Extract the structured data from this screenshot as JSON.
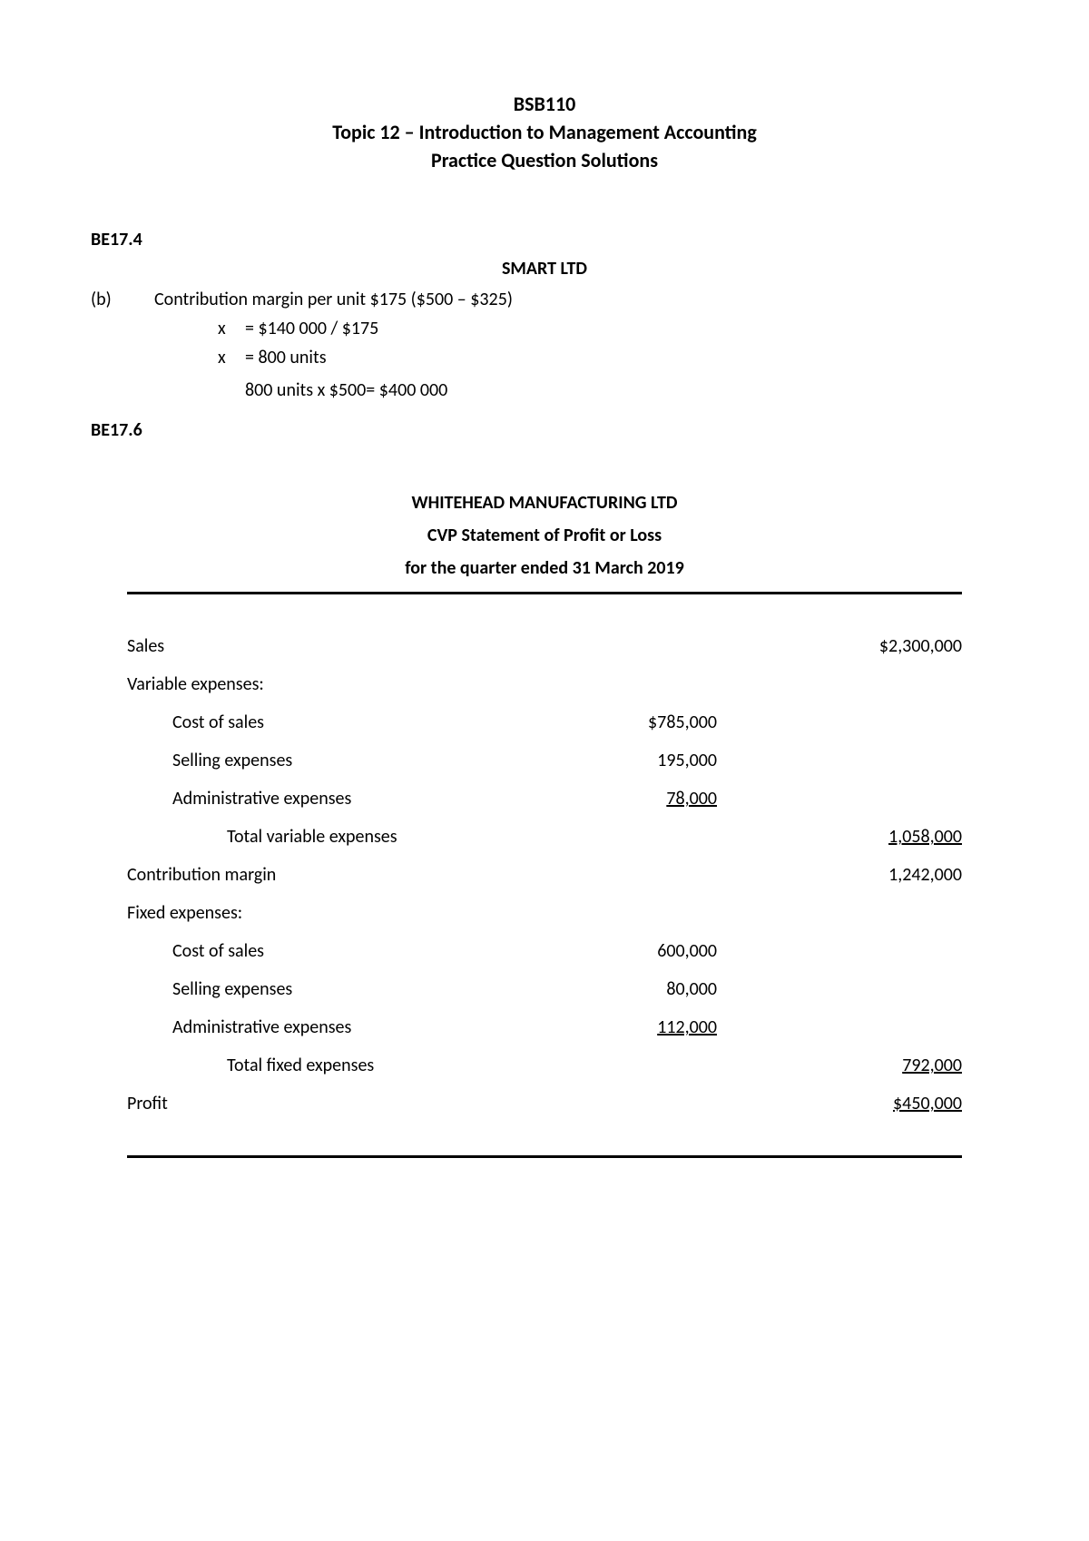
{
  "header": {
    "course": "BSB110",
    "topic": "Topic 12 – Introduction to Management Accounting",
    "subtitle": "Practice Question Solutions"
  },
  "q1": {
    "label": "BE17.4",
    "company": "SMART LTD",
    "part_marker": "(b)",
    "part_text": "Contribution margin per unit $175 ($500 – $325)",
    "calc1_var": "x",
    "calc1_val": "= $140 000 / $175",
    "calc2_var": "x",
    "calc2_val": "= 800 units",
    "calc3": "800 units x $500= $400 000"
  },
  "q2": {
    "label": "BE17.6"
  },
  "statement": {
    "company": "WHITEHEAD MANUFACTURING LTD",
    "title": "CVP Statement of Profit or Loss",
    "period": "for the quarter ended 31 March 2019",
    "rows": {
      "sales_label": "Sales",
      "sales_amount": "$2,300,000",
      "var_exp_header": "Variable expenses:",
      "var_cos_label": "Cost of sales",
      "var_cos_amount": "$785,000",
      "var_sell_label": "Selling expenses",
      "var_sell_amount": "195,000",
      "var_admin_label": "Administrative expenses",
      "var_admin_amount": "78,000",
      "var_total_label": "Total variable expenses",
      "var_total_amount": "1,058,000",
      "cm_label": "Contribution margin",
      "cm_amount": "1,242,000",
      "fix_exp_header": "Fixed expenses:",
      "fix_cos_label": "Cost of sales",
      "fix_cos_amount": "600,000",
      "fix_sell_label": "Selling expenses",
      "fix_sell_amount": "80,000",
      "fix_admin_label": "Administrative expenses",
      "fix_admin_amount": "112,000",
      "fix_total_label": "Total fixed expenses",
      "fix_total_amount": "792,000",
      "profit_label": "Profit",
      "profit_amount": "$450,000"
    }
  }
}
